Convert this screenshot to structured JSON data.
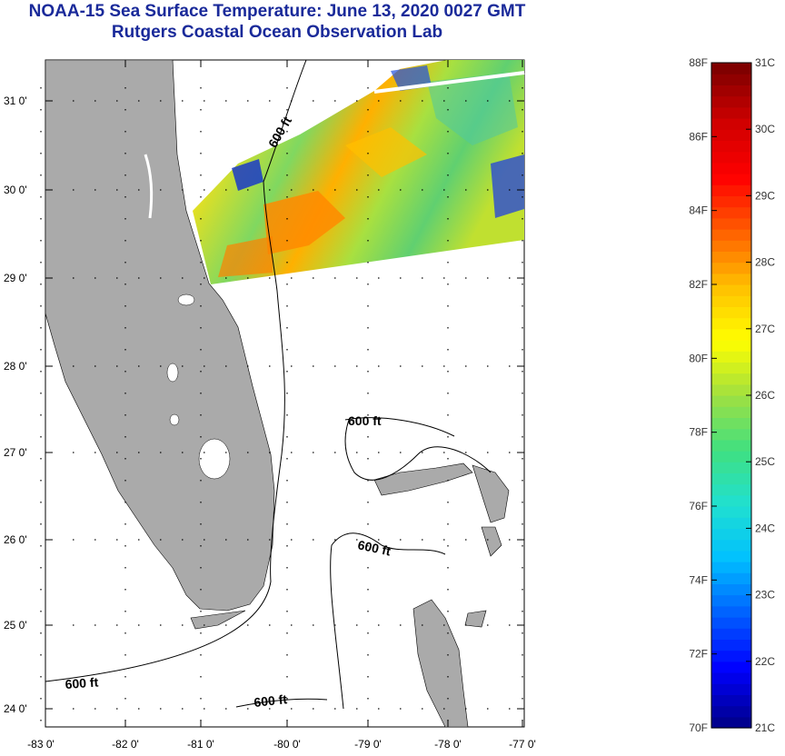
{
  "header": {
    "title": "NOAA-15 Sea Surface Temperature:  June 13, 2020 0027 GMT",
    "subtitle": "Rutgers Coastal Ocean Observation Lab"
  },
  "map": {
    "lon_ticks": [
      "-83 0'",
      "-82 0'",
      "-81 0'",
      "-80 0'",
      "-79 0'",
      "-78 0'",
      "-77 0'"
    ],
    "lat_ticks": [
      "24 0'",
      "25 0'",
      "26 0'",
      "27 0'",
      "28 0'",
      "29 0'",
      "30 0'",
      "31 0'"
    ],
    "contour_label": "600 ft",
    "colors": {
      "land": "#aaaaaa",
      "ocean_nodata": "#ffffff",
      "frame": "#000000"
    }
  },
  "legend": {
    "fahrenheit_labels": [
      "88F",
      "86F",
      "84F",
      "82F",
      "80F",
      "78F",
      "76F",
      "74F",
      "72F",
      "70F"
    ],
    "celsius_labels": [
      "31C",
      "30C",
      "29C",
      "28C",
      "27C",
      "26C",
      "25C",
      "24C",
      "23C",
      "22C",
      "21C"
    ],
    "colors": [
      "#000090",
      "#0000ff",
      "#0060ff",
      "#00c0ff",
      "#20e0d0",
      "#40e080",
      "#a0e040",
      "#ffff00",
      "#ffc000",
      "#ff6000",
      "#ff0000",
      "#d00000",
      "#800000"
    ]
  }
}
